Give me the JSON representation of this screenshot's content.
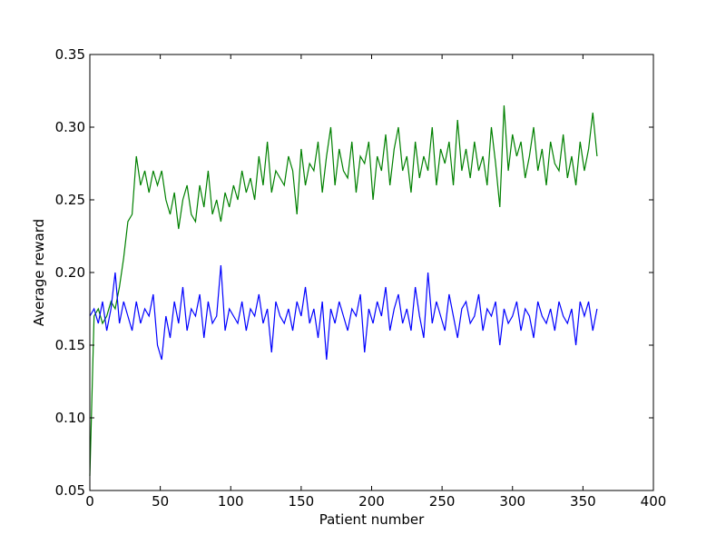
{
  "chart_data": {
    "type": "line",
    "xlabel": "Patient number",
    "ylabel": "Average reward",
    "x": [
      0,
      3,
      6,
      9,
      12,
      15,
      18,
      21,
      24,
      27,
      30,
      33,
      36,
      39,
      42,
      45,
      48,
      51,
      54,
      57,
      60,
      63,
      66,
      69,
      72,
      75,
      78,
      81,
      84,
      87,
      90,
      93,
      96,
      99,
      102,
      105,
      108,
      111,
      114,
      117,
      120,
      123,
      126,
      129,
      132,
      135,
      138,
      141,
      144,
      147,
      150,
      153,
      156,
      159,
      162,
      165,
      168,
      171,
      174,
      177,
      180,
      183,
      186,
      189,
      192,
      195,
      198,
      201,
      204,
      207,
      210,
      213,
      216,
      219,
      222,
      225,
      228,
      231,
      234,
      237,
      240,
      243,
      246,
      249,
      252,
      255,
      258,
      261,
      264,
      267,
      270,
      273,
      276,
      279,
      282,
      285,
      288,
      291,
      294,
      297,
      300,
      303,
      306,
      309,
      312,
      315,
      318,
      321,
      324,
      327,
      330,
      333,
      336,
      339,
      342,
      345,
      348,
      351,
      354,
      357,
      360
    ],
    "series": [
      {
        "name": "green",
        "color": "#008000",
        "values": [
          0.06,
          0.17,
          0.175,
          0.165,
          0.17,
          0.18,
          0.175,
          0.19,
          0.21,
          0.235,
          0.24,
          0.28,
          0.26,
          0.27,
          0.255,
          0.27,
          0.26,
          0.27,
          0.25,
          0.24,
          0.255,
          0.23,
          0.25,
          0.26,
          0.24,
          0.235,
          0.26,
          0.245,
          0.27,
          0.24,
          0.25,
          0.235,
          0.255,
          0.245,
          0.26,
          0.25,
          0.27,
          0.255,
          0.265,
          0.25,
          0.28,
          0.26,
          0.29,
          0.255,
          0.27,
          0.265,
          0.26,
          0.28,
          0.27,
          0.24,
          0.285,
          0.26,
          0.275,
          0.27,
          0.29,
          0.255,
          0.28,
          0.3,
          0.26,
          0.285,
          0.27,
          0.265,
          0.29,
          0.255,
          0.28,
          0.275,
          0.29,
          0.25,
          0.28,
          0.27,
          0.295,
          0.26,
          0.285,
          0.3,
          0.27,
          0.28,
          0.255,
          0.29,
          0.265,
          0.28,
          0.27,
          0.3,
          0.26,
          0.285,
          0.275,
          0.29,
          0.26,
          0.305,
          0.27,
          0.285,
          0.265,
          0.29,
          0.27,
          0.28,
          0.26,
          0.3,
          0.275,
          0.245,
          0.315,
          0.27,
          0.295,
          0.28,
          0.29,
          0.265,
          0.28,
          0.3,
          0.27,
          0.285,
          0.26,
          0.29,
          0.275,
          0.27,
          0.295,
          0.265,
          0.28,
          0.26,
          0.29,
          0.27,
          0.285,
          0.31,
          0.28
        ]
      },
      {
        "name": "blue",
        "color": "#0000ff",
        "values": [
          0.17,
          0.175,
          0.165,
          0.18,
          0.16,
          0.175,
          0.2,
          0.165,
          0.18,
          0.17,
          0.16,
          0.18,
          0.165,
          0.175,
          0.17,
          0.185,
          0.15,
          0.14,
          0.17,
          0.155,
          0.18,
          0.165,
          0.19,
          0.16,
          0.175,
          0.17,
          0.185,
          0.155,
          0.18,
          0.165,
          0.17,
          0.205,
          0.16,
          0.175,
          0.17,
          0.165,
          0.18,
          0.16,
          0.175,
          0.17,
          0.185,
          0.165,
          0.175,
          0.145,
          0.18,
          0.17,
          0.165,
          0.175,
          0.16,
          0.18,
          0.17,
          0.19,
          0.165,
          0.175,
          0.155,
          0.18,
          0.14,
          0.175,
          0.165,
          0.18,
          0.17,
          0.16,
          0.175,
          0.17,
          0.185,
          0.145,
          0.175,
          0.165,
          0.18,
          0.17,
          0.19,
          0.16,
          0.175,
          0.185,
          0.165,
          0.175,
          0.16,
          0.19,
          0.17,
          0.155,
          0.2,
          0.165,
          0.18,
          0.17,
          0.16,
          0.185,
          0.17,
          0.155,
          0.175,
          0.18,
          0.165,
          0.17,
          0.185,
          0.16,
          0.175,
          0.17,
          0.18,
          0.15,
          0.175,
          0.165,
          0.17,
          0.18,
          0.16,
          0.175,
          0.17,
          0.155,
          0.18,
          0.17,
          0.165,
          0.175,
          0.16,
          0.18,
          0.17,
          0.165,
          0.175,
          0.15,
          0.18,
          0.17,
          0.18,
          0.16,
          0.175
        ]
      }
    ],
    "xlim": [
      0,
      400
    ],
    "xticks": [
      0,
      50,
      100,
      150,
      200,
      250,
      300,
      350,
      400
    ],
    "ylim": [
      0.05,
      0.35
    ],
    "yticks": [
      0.05,
      {
        "value": 0.1,
        "label": "0.10"
      },
      0.15,
      {
        "value": 0.2,
        "label": "0.20"
      },
      0.25,
      {
        "value": 0.3,
        "label": "0.30"
      },
      0.35
    ],
    "grid": false
  }
}
